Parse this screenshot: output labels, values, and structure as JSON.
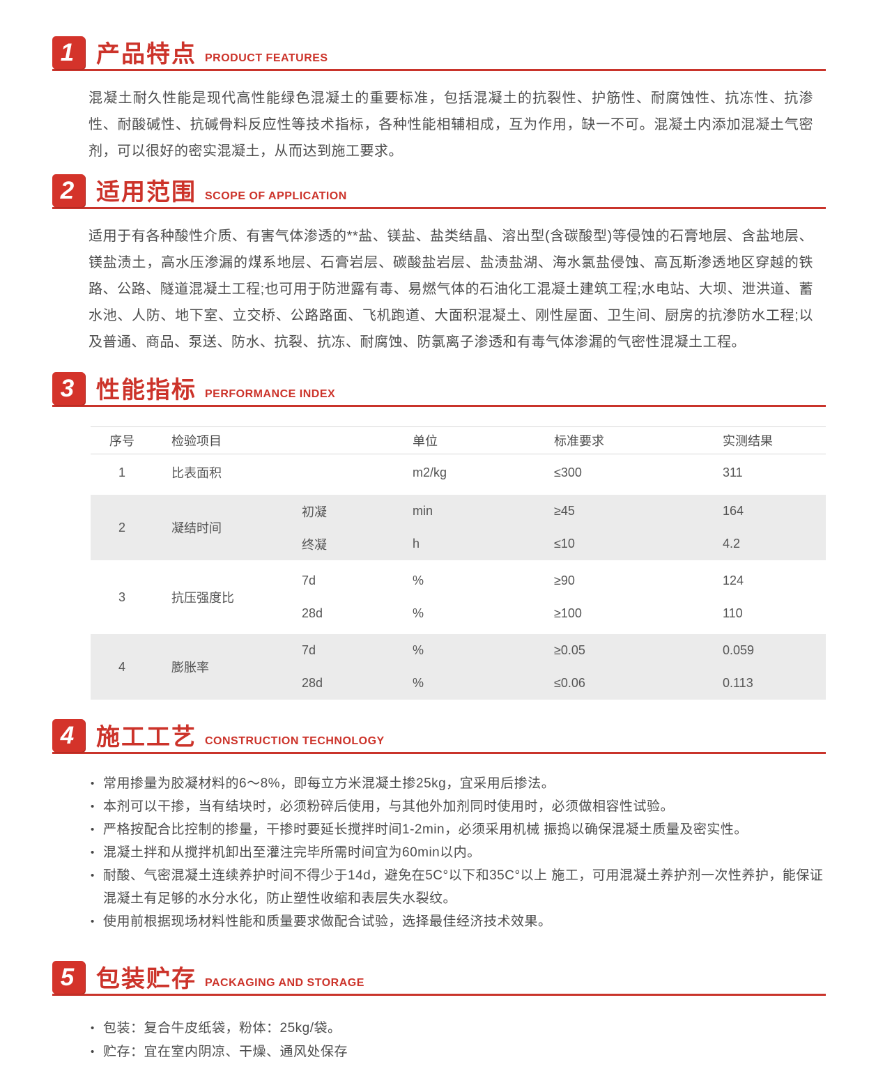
{
  "glyphs": {
    "bullet": "•"
  },
  "colors": {
    "accent": "#cc332a",
    "badge": "#d4332a",
    "body_text": "#4d4d4d",
    "table_band": "#ebebeb"
  },
  "sections": [
    {
      "number": "1",
      "title": "产品特点",
      "subtitle": "PRODUCT FEATURES",
      "paragraph": "混凝土耐久性能是现代高性能绿色混凝土的重要标准，包括混凝土的抗裂性、护筋性、耐腐蚀性、抗冻性、抗渗性、耐酸碱性、抗碱骨料反应性等技术指标，各种性能相辅相成，互为作用，缺一不可。混凝土内添加混凝土气密剂，可以很好的密实混凝土，从而达到施工要求。"
    },
    {
      "number": "2",
      "title": "适用范围",
      "subtitle": "SCOPE OF APPLICATION",
      "paragraph": "适用于有各种酸性介质、有害气体渗透的**盐、镁盐、盐类结晶、溶出型(含碳酸型)等侵蚀的石膏地层、含盐地层、镁盐渍土，高水压渗漏的煤系地层、石膏岩层、碳酸盐岩层、盐渍盐湖、海水氯盐侵蚀、高瓦斯渗透地区穿越的铁路、公路、隧道混凝土工程;也可用于防泄露有毒、易燃气体的石油化工混凝土建筑工程;水电站、大坝、泄洪道、蓄水池、人防、地下室、立交桥、公路路面、飞机跑道、大面积混凝土、刚性屋面、卫生间、厨房的抗渗防水工程;以及普通、商品、泵送、防水、抗裂、抗冻、耐腐蚀、防氯离子渗透和有毒气体渗漏的气密性混凝土工程。"
    },
    {
      "number": "3",
      "title": "性能指标",
      "subtitle": "PERFORMANCE INDEX",
      "table": {
        "headers": [
          "序号",
          "检验项目",
          "单位",
          "标准要求",
          "实测结果"
        ],
        "groups": [
          {
            "no": "1",
            "item": "比表面积",
            "rows": [
              {
                "sub": "",
                "unit": "m2/kg",
                "req": "≤300",
                "result": "311"
              }
            ]
          },
          {
            "no": "2",
            "item": "凝结时间",
            "rows": [
              {
                "sub": "初凝",
                "unit": "min",
                "req": "≥45",
                "result": "164"
              },
              {
                "sub": "终凝",
                "unit": "h",
                "req": "≤10",
                "result": "4.2"
              }
            ]
          },
          {
            "no": "3",
            "item": "抗压强度比",
            "rows": [
              {
                "sub": "7d",
                "unit": "%",
                "req": "≥90",
                "result": "124"
              },
              {
                "sub": "28d",
                "unit": "%",
                "req": "≥100",
                "result": "110"
              }
            ]
          },
          {
            "no": "4",
            "item": "膨胀率",
            "rows": [
              {
                "sub": "7d",
                "unit": "%",
                "req": "≥0.05",
                "result": "0.059"
              },
              {
                "sub": "28d",
                "unit": "%",
                "req": "≤0.06",
                "result": "0.113"
              }
            ]
          }
        ]
      }
    },
    {
      "number": "4",
      "title": "施工工艺",
      "subtitle": "CONSTRUCTION TECHNOLOGY",
      "bullets": [
        "常用掺量为胶凝材料的6～8%，即每立方米混凝土掺25kg，宜采用后掺法。",
        "本剂可以干掺，当有结块时，必须粉碎后使用，与其他外加剂同时使用时，必须做相容性试验。",
        "严格按配合比控制的掺量，干掺时要延长搅拌时间1-2min，必须采用机械 振捣以确保混凝土质量及密实性。",
        "混凝土拌和从搅拌机卸出至灌注完毕所需时间宜为60min以内。",
        "耐酸、气密混凝土连续养护时间不得少于14d，避免在5C°以下和35C°以上 施工，可用混凝土养护剂一次性养护，能保证混凝土有足够的水分水化，防止塑性收缩和表层失水裂纹。",
        "使用前根据现场材料性能和质量要求做配合试验，选择最佳经济技术效果。"
      ]
    },
    {
      "number": "5",
      "title": "包装贮存",
      "subtitle": "PACKAGING AND STORAGE",
      "bullets": [
        "包装：复合牛皮纸袋，粉体：25kg/袋。",
        "贮存：宜在室内阴凉、干燥、通风处保存"
      ]
    }
  ]
}
